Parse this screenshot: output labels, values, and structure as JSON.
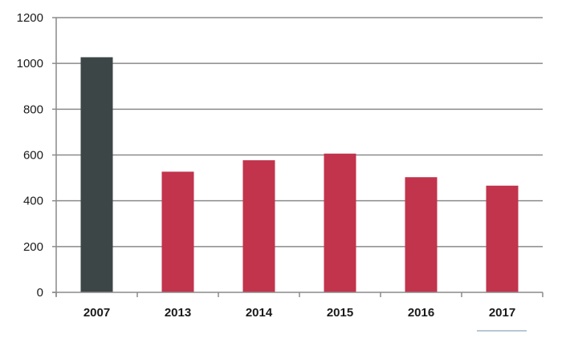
{
  "chart_data": {
    "type": "bar",
    "title": "",
    "xlabel": "",
    "ylabel": "",
    "categories": [
      "2007",
      "2013",
      "2014",
      "2015",
      "2016",
      "2017"
    ],
    "values": [
      1027,
      527,
      577,
      606,
      503,
      466
    ],
    "bar_colors": [
      "#3d4647",
      "#c2334c",
      "#c2334c",
      "#c2334c",
      "#c2334c",
      "#c2334c"
    ],
    "ylim": [
      0,
      1200
    ],
    "yticks": [
      "0",
      "200",
      "400",
      "600",
      "800",
      "1000",
      "1200"
    ],
    "grid": true,
    "legend": "none"
  }
}
